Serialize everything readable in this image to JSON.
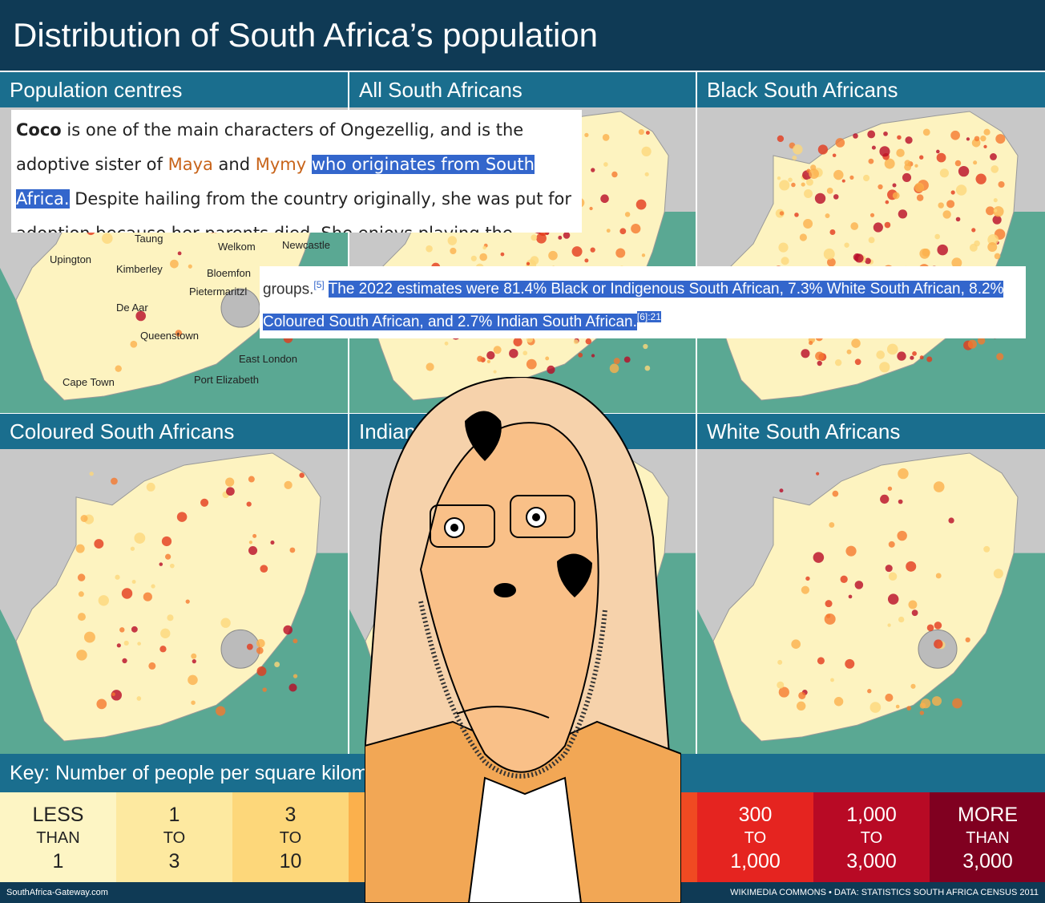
{
  "header": {
    "title": "Distribution of South Africa’s population"
  },
  "panels": [
    "Population centres",
    "All South Africans",
    "Black South Africans",
    "Coloured South Africans",
    "Indian South Africans",
    "White South Africans"
  ],
  "cities": [
    "Taung",
    "Welkom",
    "Newcastle",
    "Upington",
    "Kimberley",
    "Bloemfon",
    "Pietermaritzl",
    "De Aar",
    "Queenstown",
    "East London",
    "Cape Town",
    "Port Elizabeth"
  ],
  "snippet_1": {
    "name": "Coco",
    "t1": " is one of the main characters of Ongezellig, and is the adoptive sister of ",
    "maya": "Maya",
    "t2": " and ",
    "mymy": "Mymy",
    "highlight": "who originates from South Africa.",
    "t3": " Despite hailing from the country originally, she was put for adoption because her parents died. She enjoys playing the"
  },
  "snippet_2": {
    "lead": "groups.",
    "ref1": "[5]",
    "highlight": "The 2022 estimates were 81.4% Black or Indigenous South African, 7.3% White South African, 8.2% Coloured South African, and 2.7% Indian South African.",
    "ref2": "[6]:21"
  },
  "key": {
    "title": "Key: Number of people per square kilometre",
    "cells": [
      [
        "LESS",
        "THAN",
        "1"
      ],
      [
        "1",
        "TO",
        "3"
      ],
      [
        "3",
        "TO",
        "10"
      ],
      [
        "300",
        "TO",
        "1,000"
      ],
      [
        "1,000",
        "TO",
        "3,000"
      ],
      [
        "MORE",
        "THAN",
        "3,000"
      ]
    ]
  },
  "footer": {
    "left": "SouthAfrica-Gateway.com",
    "right": "WIKIMEDIA COMMONS • DATA: STATISTICS SOUTH AFRICA CENSUS 2011"
  }
}
